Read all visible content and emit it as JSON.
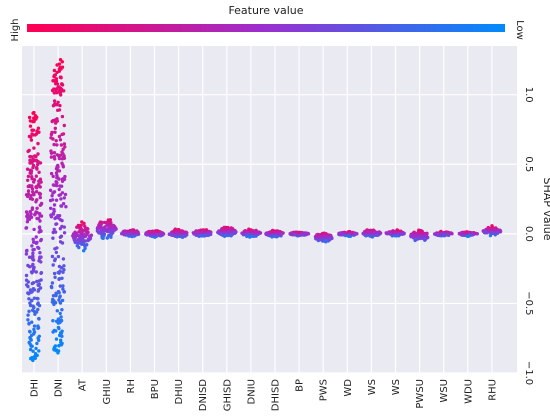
{
  "chart_data": {
    "type": "scatter",
    "subtype": "shap-beeswarm",
    "colorbar": {
      "title": "Feature value",
      "high_label": "High",
      "low_label": "Low",
      "high_color": "#ff0052",
      "low_color": "#008bfb",
      "placement": "top"
    },
    "ylabel": "SHAP value",
    "ylim": [
      -1.0,
      1.35
    ],
    "yticks": [
      {
        "value": 1.0,
        "label": "1.0"
      },
      {
        "value": 0.5,
        "label": "0.5"
      },
      {
        "value": 0.0,
        "label": "0.0"
      },
      {
        "value": -0.5,
        "label": "−0.5"
      },
      {
        "value": -1.0,
        "label": "−1.0"
      }
    ],
    "features": [
      {
        "name": "DHI",
        "min": -0.92,
        "max": 0.88
      },
      {
        "name": "DNI",
        "min": -0.86,
        "max": 1.26
      },
      {
        "name": "AT",
        "min": -0.14,
        "max": 0.1
      },
      {
        "name": "GHIU",
        "min": -0.06,
        "max": 0.13
      },
      {
        "name": "RH",
        "min": -0.03,
        "max": 0.04
      },
      {
        "name": "BPU",
        "min": -0.03,
        "max": 0.03
      },
      {
        "name": "DHIU",
        "min": -0.04,
        "max": 0.04
      },
      {
        "name": "DNISD",
        "min": -0.03,
        "max": 0.04
      },
      {
        "name": "GHISD",
        "min": -0.03,
        "max": 0.06
      },
      {
        "name": "DNIU",
        "min": -0.03,
        "max": 0.04
      },
      {
        "name": "DHISD",
        "min": -0.03,
        "max": 0.03
      },
      {
        "name": "BP",
        "min": -0.02,
        "max": 0.02
      },
      {
        "name": "PWS",
        "min": -0.07,
        "max": 0.02
      },
      {
        "name": "WD",
        "min": -0.02,
        "max": 0.02
      },
      {
        "name": "WS",
        "min": -0.03,
        "max": 0.04
      },
      {
        "name": "WS",
        "min": -0.02,
        "max": 0.03
      },
      {
        "name": "PWSU",
        "min": -0.07,
        "max": 0.04
      },
      {
        "name": "WSU",
        "min": -0.02,
        "max": 0.02
      },
      {
        "name": "WDU",
        "min": -0.02,
        "max": 0.02
      },
      {
        "name": "RHU",
        "min": -0.02,
        "max": 0.06
      }
    ],
    "grid": true,
    "legend": "colorbar-top"
  }
}
